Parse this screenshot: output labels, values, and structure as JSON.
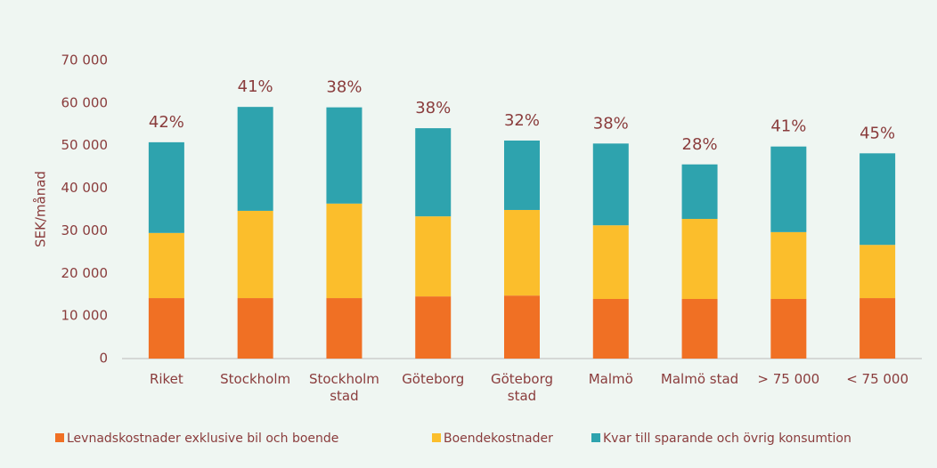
{
  "chart_data": {
    "type": "stacked-bar",
    "y_label": "SEK/månad",
    "categories": [
      "Riket",
      "Stockholm",
      "Stockholm stad",
      "Göteborg",
      "Göteborg stad",
      "Malmö",
      "Malmö stad",
      "> 75 000",
      "< 75 000"
    ],
    "series": [
      {
        "name": "Levnadskostnader exklusive bil och boende",
        "color": "#f07024",
        "values": [
          14200,
          14200,
          14200,
          14600,
          14800,
          14000,
          14000,
          14000,
          14200
        ]
      },
      {
        "name": "Boendekostnader",
        "color": "#fbbe2c",
        "values": [
          15300,
          20500,
          22200,
          18800,
          20100,
          17300,
          18800,
          15700,
          12500
        ]
      },
      {
        "name": "Kvar till sparande och övrig konsumtion",
        "color": "#2ea3ae",
        "values": [
          21300,
          24400,
          22600,
          20700,
          16300,
          19200,
          12800,
          20100,
          21500
        ]
      }
    ],
    "annotations": [
      "42%",
      "41%",
      "38%",
      "38%",
      "32%",
      "38%",
      "28%",
      "41%",
      "45%"
    ],
    "ylim": [
      0,
      70000
    ],
    "yticks": [
      0,
      {
        "value": 10000,
        "label": "10 000"
      },
      {
        "value": 20000,
        "label": "20 000"
      },
      {
        "value": 30000,
        "label": "30 000"
      },
      {
        "value": 40000,
        "label": "40 000"
      },
      {
        "value": 50000,
        "label": "50 000"
      },
      {
        "value": 60000,
        "label": "60 000"
      },
      {
        "value": 70000,
        "label": "70 000"
      }
    ],
    "grid": false,
    "legend": "bottom"
  }
}
